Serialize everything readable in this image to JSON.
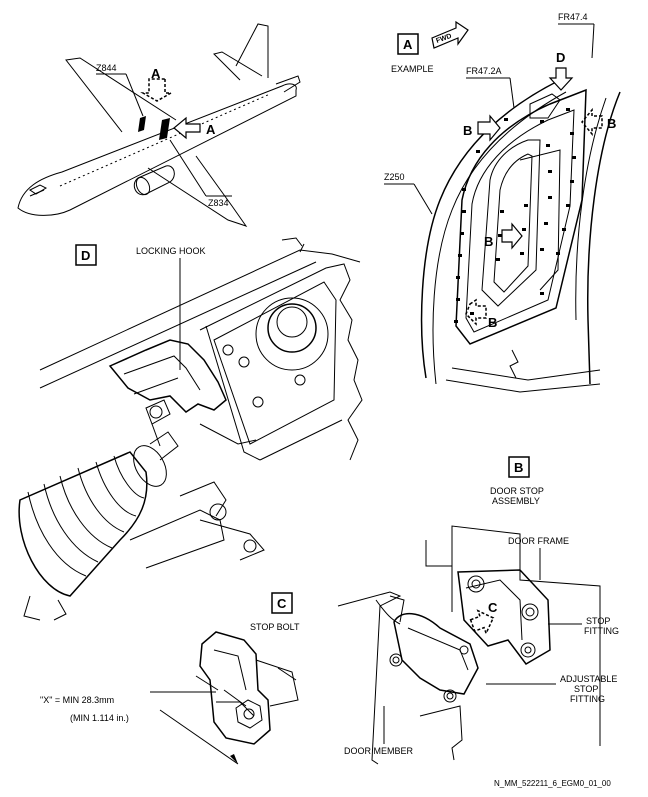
{
  "aircraft": {
    "zone_upper": "Z844",
    "zone_lower": "Z834",
    "view_a_dashed": "A",
    "view_a_solid": "A"
  },
  "view_a": {
    "letter": "A",
    "caption": "EXAMPLE",
    "fwd": "FWD",
    "frame_aft": "FR47.4",
    "frame_fwd": "FR47.2A",
    "zone": "Z250",
    "callout_d": "D",
    "callout_b_left": "B",
    "callout_b_right": "B",
    "callout_b_inner": "B",
    "callout_b_lower": "B"
  },
  "view_d": {
    "letter": "D",
    "locking_hook": "LOCKING HOOK"
  },
  "view_b": {
    "letter": "B",
    "caption_line1": "DOOR STOP",
    "caption_line2": "ASSEMBLY",
    "door_frame": "DOOR FRAME",
    "stop_fitting_line1": "STOP",
    "stop_fitting_line2": "FITTING",
    "adj_line1": "ADJUSTABLE",
    "adj_line2": "STOP",
    "adj_line3": "FITTING",
    "door_member": "DOOR MEMBER",
    "callout_c": "C"
  },
  "view_c": {
    "letter": "C",
    "caption": "STOP BOLT",
    "dim_line1": "\"X\" = MIN 28.3mm",
    "dim_line2": "(MIN 1.114 in.)"
  },
  "figure_id": "N_MM_522211_6_EGM0_01_00"
}
